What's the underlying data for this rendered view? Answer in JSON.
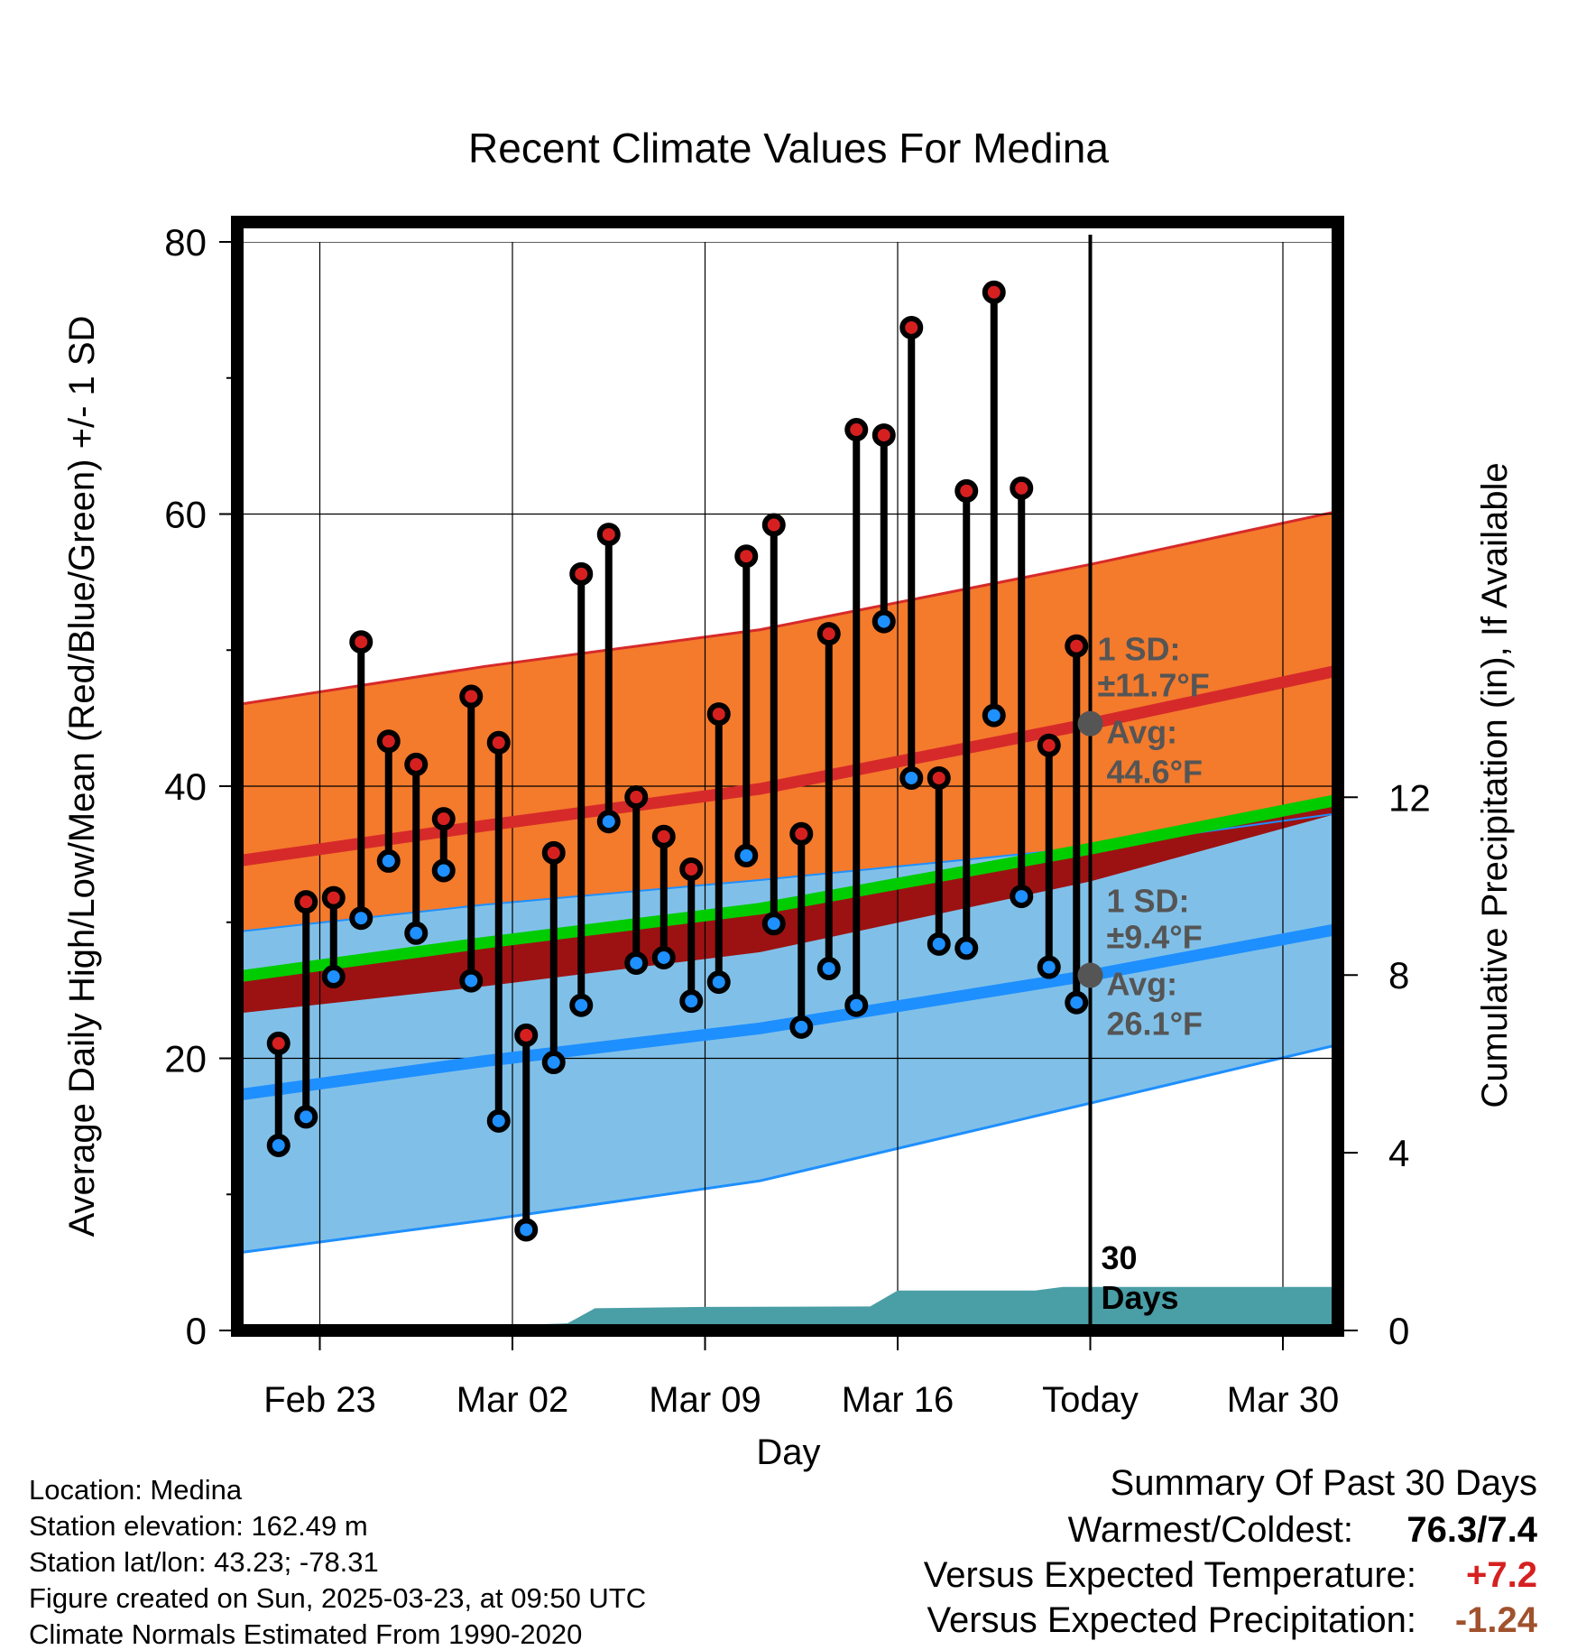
{
  "chart_data": {
    "type": "line",
    "title": "Recent Climate Values For Medina",
    "xlabel": "Day",
    "ylabel": "Average Daily High/Low/Mean (Red/Blue/Green) +/- 1 SD",
    "y2label": "Cumulative Precipitation (in), If Available",
    "ylim": [
      0,
      80
    ],
    "y2lim": [
      0,
      24.5
    ],
    "y_ticks": [
      0,
      20,
      40,
      60,
      80
    ],
    "y2_ticks": [
      0,
      4,
      8,
      12
    ],
    "xlim": [
      "2025-02-20",
      "2025-04-01"
    ],
    "x_ticks": [
      {
        "date": "2025-02-23",
        "label": "Feb 23"
      },
      {
        "date": "2025-03-02",
        "label": "Mar 02"
      },
      {
        "date": "2025-03-09",
        "label": "Mar 09"
      },
      {
        "date": "2025-03-16",
        "label": "Mar 16"
      },
      {
        "date": "2025-03-23",
        "label": "Today"
      },
      {
        "date": "2025-03-30",
        "label": "Mar 30"
      }
    ],
    "today": "2025-03-23",
    "normals": {
      "x": [
        "2025-02-20",
        "2025-03-01",
        "2025-03-11",
        "2025-03-23",
        "2025-04-01"
      ],
      "high_mean": [
        34.5,
        37.1,
        39.8,
        44.6,
        48.5
      ],
      "high_upper": [
        46,
        48.8,
        51.5,
        56.3,
        60.2
      ],
      "low_mean": [
        17.3,
        19.8,
        22.2,
        26.1,
        29.5
      ],
      "low_upper": [
        29.3,
        31.3,
        33.1,
        35.5,
        38.0
      ],
      "low_lower": [
        5.7,
        8.1,
        11.0,
        16.7,
        21.0
      ],
      "mean": [
        26.0,
        28.5,
        31.0,
        35.4,
        39.0
      ],
      "mean_lower": [
        23.3,
        25.3,
        27.8,
        33.0,
        38.0
      ]
    },
    "daily": {
      "dates": [
        "2025-02-21",
        "2025-02-22",
        "2025-02-23",
        "2025-02-24",
        "2025-02-25",
        "2025-02-26",
        "2025-02-27",
        "2025-02-28",
        "2025-03-01",
        "2025-03-02",
        "2025-03-03",
        "2025-03-04",
        "2025-03-05",
        "2025-03-06",
        "2025-03-07",
        "2025-03-08",
        "2025-03-09",
        "2025-03-10",
        "2025-03-11",
        "2025-03-12",
        "2025-03-13",
        "2025-03-14",
        "2025-03-15",
        "2025-03-16",
        "2025-03-17",
        "2025-03-18",
        "2025-03-19",
        "2025-03-20",
        "2025-03-21",
        "2025-03-22"
      ],
      "high": [
        21.1,
        31.5,
        31.8,
        50.6,
        43.3,
        41.6,
        37.6,
        46.6,
        43.2,
        21.7,
        35.1,
        55.6,
        58.5,
        39.2,
        36.3,
        33.9,
        45.3,
        56.9,
        59.2,
        36.5,
        51.2,
        66.2,
        65.8,
        73.7,
        40.6,
        61.7,
        76.3,
        61.9,
        43.0,
        50.3
      ],
      "low": [
        13.6,
        15.7,
        26.0,
        30.3,
        34.5,
        29.2,
        33.8,
        25.7,
        15.4,
        7.4,
        19.7,
        23.9,
        37.4,
        27.0,
        27.4,
        24.2,
        25.6,
        34.9,
        29.9,
        22.3,
        26.6,
        23.9,
        52.1,
        40.6,
        28.4,
        28.1,
        45.2,
        31.9,
        26.7,
        24.1
      ]
    },
    "precipitation": {
      "x": [
        "2025-02-20",
        "2025-02-23",
        "2025-02-26",
        "2025-02-27",
        "2025-02-28",
        "2025-03-01",
        "2025-03-03",
        "2025-03-04",
        "2025-03-05",
        "2025-03-09",
        "2025-03-15",
        "2025-03-16",
        "2025-03-17",
        "2025-03-21",
        "2025-03-22",
        "2025-04-01"
      ],
      "y": [
        0,
        0,
        0,
        0.05,
        0.12,
        0.13,
        0.14,
        0.16,
        0.5,
        0.53,
        0.54,
        0.9,
        0.9,
        0.9,
        0.98,
        0.98
      ]
    },
    "annotations": {
      "high_sd": "1 SD:",
      "high_sd_value": "±11.7°F",
      "high_avg": "Avg:",
      "high_avg_value": "44.6°F",
      "low_sd": "1 SD:",
      "low_sd_value": "±9.4°F",
      "low_avg": "Avg:",
      "low_avg_value": "26.1°F",
      "days_num": "30",
      "days_word": "Days"
    },
    "colors": {
      "high_band": "#f47a2c",
      "high_line": "#d62a2a",
      "low_band": "#80c0e8",
      "low_line": "#1e8fff",
      "mean_band": "#9c1212",
      "mean_line": "#00cc00",
      "precip": "#4a9ea6",
      "high_dot": "#d62020",
      "low_dot": "#1e90ff",
      "marker": "#555555",
      "annotation_text": "#555555"
    }
  },
  "footer": {
    "location": "Location: Medina",
    "elevation": "Station elevation: 162.49 m",
    "latlon": "Station lat/lon: 43.23; -78.31",
    "created": "Figure created on Sun, 2025-03-23, at 09:50 UTC",
    "normals": "Climate Normals Estimated From 1990-2020"
  },
  "summary": {
    "title": "Summary Of Past 30 Days",
    "warmest_label": "Warmest/Coldest:",
    "warmest_value": "76.3/7.4",
    "temp_label": "Versus Expected Temperature:",
    "temp_value": "+7.2",
    "temp_color": "#d62020",
    "precip_label": "Versus Expected Precipitation:",
    "precip_value": "-1.24",
    "precip_color": "#a0522d"
  }
}
